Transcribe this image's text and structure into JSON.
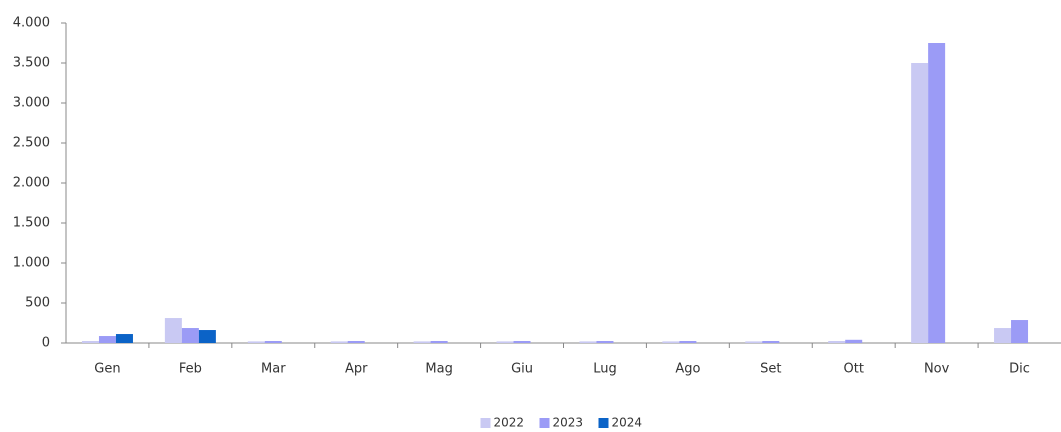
{
  "chart_data": {
    "type": "bar",
    "categories": [
      "Gen",
      "Feb",
      "Mar",
      "Apr",
      "Mag",
      "Giu",
      "Lug",
      "Ago",
      "Set",
      "Ott",
      "Nov",
      "Dic"
    ],
    "series": [
      {
        "name": "2022",
        "color": "#c9c9f3",
        "values": [
          25,
          312,
          20,
          20,
          20,
          20,
          20,
          20,
          20,
          25,
          3500,
          187
        ]
      },
      {
        "name": "2023",
        "color": "#9b9bf6",
        "values": [
          87,
          187,
          25,
          25,
          25,
          25,
          25,
          25,
          25,
          40,
          3750,
          287
        ]
      },
      {
        "name": "2024",
        "color": "#0b63c7",
        "values": [
          112,
          162,
          null,
          null,
          null,
          null,
          null,
          null,
          null,
          null,
          null,
          null
        ]
      }
    ],
    "ylim": [
      0,
      4000
    ],
    "yticks": [
      0,
      500,
      {
        "value": 1000,
        "label": "1.000"
      },
      {
        "value": 1500,
        "label": "1.500"
      },
      {
        "value": 2000,
        "label": "2.000"
      },
      {
        "value": 2500,
        "label": "2.500"
      },
      {
        "value": 3000,
        "label": "3.000"
      },
      {
        "value": 3500,
        "label": "3.500"
      },
      {
        "value": 4000,
        "label": "4.000"
      }
    ],
    "grid": false,
    "legend": "bottom"
  }
}
